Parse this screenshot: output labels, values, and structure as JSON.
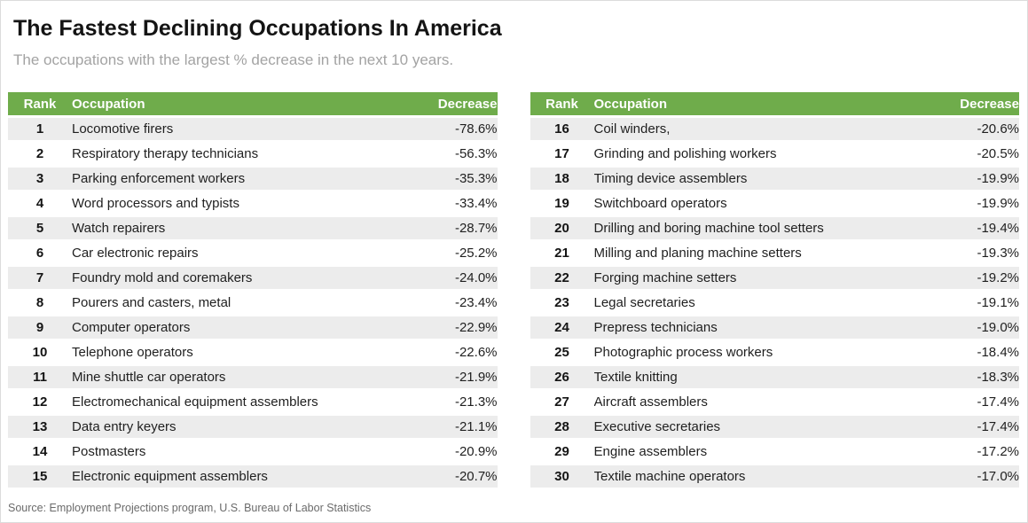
{
  "header": {
    "title": "The Fastest Declining Occupations In America",
    "subtitle": "The occupations with the largest % decrease in the next 10 years."
  },
  "table_headers": {
    "rank": "Rank",
    "occupation": "Occupation",
    "decrease": "Decrease"
  },
  "footer": {
    "source": "Source: Employment Projections program, U.S. Bureau of Labor Statistics"
  },
  "colors": {
    "header_bg": "#6FAC4B",
    "header_text": "#FFFFFF",
    "row_alt_bg": "#ECECEC",
    "title_text": "#141414",
    "subtitle_text": "#A3A3A3",
    "source_text": "#6B6B6B"
  },
  "chart_data": {
    "type": "table",
    "title": "The Fastest Declining Occupations In America",
    "subtitle": "The occupations with the largest % decrease in the next 10 years.",
    "columns": [
      "Rank",
      "Occupation",
      "Decrease"
    ],
    "layout": "two side-by-side tables: ranks 1-15 left, ranks 16-30 right; green header row; alternating gray/white row shading",
    "rows": [
      {
        "rank": "1",
        "occupation": "Locomotive firers",
        "decrease_pct": -78.6,
        "decrease_label": "-78.6%"
      },
      {
        "rank": "2",
        "occupation": "Respiratory therapy technicians",
        "decrease_pct": -56.3,
        "decrease_label": "-56.3%"
      },
      {
        "rank": "3",
        "occupation": "Parking enforcement workers",
        "decrease_pct": -35.3,
        "decrease_label": "-35.3%"
      },
      {
        "rank": "4",
        "occupation": "Word processors and typists",
        "decrease_pct": -33.4,
        "decrease_label": "-33.4%"
      },
      {
        "rank": "5",
        "occupation": "Watch repairers",
        "decrease_pct": -28.7,
        "decrease_label": "-28.7%"
      },
      {
        "rank": "6",
        "occupation": "Car electronic repairs",
        "decrease_pct": -25.2,
        "decrease_label": "-25.2%"
      },
      {
        "rank": "7",
        "occupation": "Foundry mold and coremakers",
        "decrease_pct": -24.0,
        "decrease_label": "-24.0%"
      },
      {
        "rank": "8",
        "occupation": "Pourers and casters, metal",
        "decrease_pct": -23.4,
        "decrease_label": "-23.4%"
      },
      {
        "rank": "9",
        "occupation": "Computer operators",
        "decrease_pct": -22.9,
        "decrease_label": "-22.9%"
      },
      {
        "rank": "10",
        "occupation": "Telephone operators",
        "decrease_pct": -22.6,
        "decrease_label": "-22.6%"
      },
      {
        "rank": "11",
        "occupation": "Mine shuttle car operators",
        "decrease_pct": -21.9,
        "decrease_label": "-21.9%"
      },
      {
        "rank": "12",
        "occupation": "Electromechanical equipment assemblers",
        "decrease_pct": -21.3,
        "decrease_label": "-21.3%"
      },
      {
        "rank": "13",
        "occupation": "Data entry keyers",
        "decrease_pct": -21.1,
        "decrease_label": "-21.1%"
      },
      {
        "rank": "14",
        "occupation": "Postmasters",
        "decrease_pct": -20.9,
        "decrease_label": "-20.9%"
      },
      {
        "rank": "15",
        "occupation": "Electronic equipment assemblers",
        "decrease_pct": -20.7,
        "decrease_label": "-20.7%"
      },
      {
        "rank": "16",
        "occupation": "Coil winders,",
        "decrease_pct": -20.6,
        "decrease_label": "-20.6%"
      },
      {
        "rank": "17",
        "occupation": "Grinding and polishing workers",
        "decrease_pct": -20.5,
        "decrease_label": "-20.5%"
      },
      {
        "rank": "18",
        "occupation": "Timing device assemblers",
        "decrease_pct": -19.9,
        "decrease_label": "-19.9%"
      },
      {
        "rank": "19",
        "occupation": "Switchboard operators",
        "decrease_pct": -19.9,
        "decrease_label": "-19.9%"
      },
      {
        "rank": "20",
        "occupation": "Drilling and boring machine tool setters",
        "decrease_pct": -19.4,
        "decrease_label": "-19.4%"
      },
      {
        "rank": "21",
        "occupation": "Milling and planing machine setters",
        "decrease_pct": -19.3,
        "decrease_label": "-19.3%"
      },
      {
        "rank": "22",
        "occupation": "Forging machine setters",
        "decrease_pct": -19.2,
        "decrease_label": "-19.2%"
      },
      {
        "rank": "23",
        "occupation": "Legal secretaries",
        "decrease_pct": -19.1,
        "decrease_label": "-19.1%"
      },
      {
        "rank": "24",
        "occupation": "Prepress technicians",
        "decrease_pct": -19.0,
        "decrease_label": "-19.0%"
      },
      {
        "rank": "25",
        "occupation": "Photographic process workers",
        "decrease_pct": -18.4,
        "decrease_label": "-18.4%"
      },
      {
        "rank": "26",
        "occupation": "Textile knitting",
        "decrease_pct": -18.3,
        "decrease_label": "-18.3%"
      },
      {
        "rank": "27",
        "occupation": "Aircraft assemblers",
        "decrease_pct": -17.4,
        "decrease_label": "-17.4%"
      },
      {
        "rank": "28",
        "occupation": "Executive secretaries",
        "decrease_pct": -17.4,
        "decrease_label": "-17.4%"
      },
      {
        "rank": "29",
        "occupation": "Engine assemblers",
        "decrease_pct": -17.2,
        "decrease_label": "-17.2%"
      },
      {
        "rank": "30",
        "occupation": "Textile machine operators",
        "decrease_pct": -17.0,
        "decrease_label": "-17.0%"
      }
    ]
  }
}
